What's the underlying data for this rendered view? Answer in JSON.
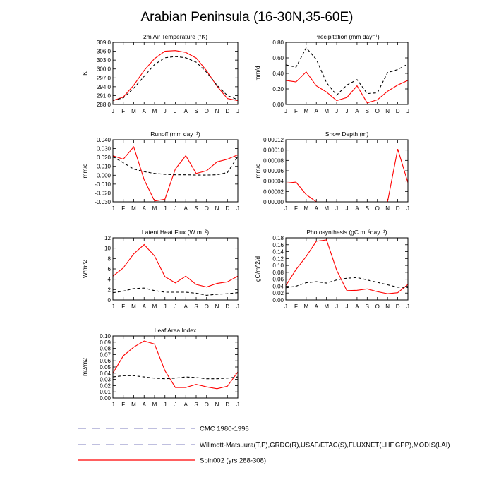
{
  "title": "Arabian Peninsula (16-30N,35-60E)",
  "months": [
    "J",
    "F",
    "M",
    "A",
    "M",
    "J",
    "J",
    "A",
    "S",
    "O",
    "N",
    "D",
    "J"
  ],
  "colors": {
    "model": "#ff0000",
    "obs": "#000000",
    "legend_dash": "#9999cc"
  },
  "legend": {
    "items": [
      {
        "label": "CMC 1980-1996",
        "style": "dashed"
      },
      {
        "label": "Willmott-Matsuura(T,P),GRDC(R),USAF/ETAC(S),FLUXNET(LHF,GPP),MODIS(LAI)",
        "style": "dashed"
      },
      {
        "label": "Spin002 (yrs 288-308)",
        "style": "solid"
      }
    ]
  },
  "chart_data": [
    {
      "type": "line",
      "title": "2m Air Temperature (°K)",
      "ylabel": "K",
      "ylim": [
        288.0,
        309.0
      ],
      "yticks": [
        288.0,
        291.0,
        294.0,
        297.0,
        300.0,
        303.0,
        306.0,
        309.0
      ],
      "ytick_labels": [
        "288.0",
        "291.0",
        "294.0",
        "297.0",
        "300.0",
        "303.0",
        "306.0",
        "309.0"
      ],
      "series": [
        {
          "role": "model",
          "values": [
            289.3,
            290.5,
            294.5,
            299.5,
            303.5,
            306.0,
            306.2,
            305.6,
            303.7,
            299.4,
            294.2,
            290.0,
            289.3
          ]
        },
        {
          "role": "obs",
          "values": [
            289.4,
            290.2,
            293.5,
            297.5,
            301.5,
            303.8,
            304.2,
            303.8,
            302.3,
            298.9,
            294.5,
            291.0,
            289.6
          ]
        }
      ]
    },
    {
      "type": "line",
      "title": "Precipitation (mm day⁻¹)",
      "ylabel": "mm/d",
      "ylim": [
        0.0,
        0.8
      ],
      "yticks": [
        0.0,
        0.2,
        0.4,
        0.6,
        0.8
      ],
      "ytick_labels": [
        "0.00",
        "0.20",
        "0.40",
        "0.60",
        "0.80"
      ],
      "series": [
        {
          "role": "model",
          "values": [
            0.31,
            0.29,
            0.42,
            0.24,
            0.16,
            0.05,
            0.09,
            0.24,
            0.02,
            0.06,
            0.17,
            0.25,
            0.31
          ]
        },
        {
          "role": "obs",
          "values": [
            0.51,
            0.48,
            0.73,
            0.58,
            0.28,
            0.12,
            0.25,
            0.32,
            0.14,
            0.15,
            0.41,
            0.45,
            0.52
          ]
        }
      ]
    },
    {
      "type": "line",
      "title": "Runoff (mm day⁻¹)",
      "ylabel": "mm/d",
      "ylim": [
        -0.03,
        0.04
      ],
      "yticks": [
        -0.03,
        -0.02,
        -0.01,
        0.0,
        0.01,
        0.02,
        0.03,
        0.04
      ],
      "ytick_labels": [
        "-0.030",
        "-0.020",
        "-0.010",
        "0.000",
        "0.010",
        "0.020",
        "0.030",
        "0.040"
      ],
      "series": [
        {
          "role": "model",
          "values": [
            0.022,
            0.018,
            0.032,
            -0.005,
            -0.029,
            -0.027,
            0.007,
            0.022,
            0.002,
            0.005,
            0.015,
            0.018,
            0.023
          ]
        },
        {
          "role": "obs",
          "values": [
            0.021,
            0.014,
            0.007,
            0.004,
            0.002,
            0.001,
            0.0005,
            0.0005,
            0.0002,
            0.0002,
            0.0005,
            0.003,
            0.021
          ]
        }
      ]
    },
    {
      "type": "line",
      "title": "Snow Depth (m)",
      "ylabel": "mm/d",
      "ylim": [
        0.0,
        0.00012
      ],
      "yticks": [
        0.0,
        2e-05,
        4e-05,
        6e-05,
        8e-05,
        0.0001,
        0.00012
      ],
      "ytick_labels": [
        "0.00000",
        "0.00002",
        "0.00004",
        "0.00006",
        "0.00008",
        "0.00010",
        "0.00012"
      ],
      "series": [
        {
          "role": "model",
          "values": [
            3.6e-05,
            3.8e-05,
            1.4e-05,
            0.0,
            0.0,
            0.0,
            0.0,
            0.0,
            0.0,
            0.0,
            0.0,
            0.000102,
            3.7e-05
          ]
        }
      ]
    },
    {
      "type": "line",
      "title": "Latent Heat Flux (W m⁻²)",
      "ylabel": "W/m^2",
      "ylim": [
        0,
        12
      ],
      "yticks": [
        0,
        2,
        4,
        6,
        8,
        10,
        12
      ],
      "ytick_labels": [
        "0",
        "2",
        "4",
        "6",
        "8",
        "10",
        "12"
      ],
      "series": [
        {
          "role": "model",
          "values": [
            4.6,
            6.2,
            8.9,
            10.7,
            8.5,
            4.5,
            3.3,
            4.6,
            3.0,
            2.5,
            3.2,
            3.5,
            4.6
          ]
        },
        {
          "role": "obs",
          "values": [
            1.4,
            1.7,
            2.2,
            2.3,
            1.8,
            1.5,
            1.5,
            1.5,
            1.3,
            0.9,
            1.1,
            1.2,
            1.4
          ]
        }
      ]
    },
    {
      "type": "line",
      "title": "Photosynthesis (gC m⁻²day⁻¹)",
      "ylabel": "gC/m^2/d",
      "ylim": [
        0.0,
        0.18
      ],
      "yticks": [
        0.0,
        0.02,
        0.04,
        0.06,
        0.08,
        0.1,
        0.12,
        0.14,
        0.16,
        0.18
      ],
      "ytick_labels": [
        "0.00",
        "0.02",
        "0.04",
        "0.06",
        "0.08",
        "0.10",
        "0.12",
        "0.14",
        "0.16",
        "0.18"
      ],
      "series": [
        {
          "role": "model",
          "values": [
            0.042,
            0.088,
            0.126,
            0.17,
            0.174,
            0.086,
            0.027,
            0.028,
            0.032,
            0.024,
            0.018,
            0.021,
            0.045
          ]
        },
        {
          "role": "obs",
          "values": [
            0.035,
            0.04,
            0.05,
            0.053,
            0.049,
            0.058,
            0.063,
            0.065,
            0.058,
            0.051,
            0.044,
            0.037,
            0.036
          ]
        }
      ]
    },
    {
      "type": "line",
      "title": "Leaf Area Index",
      "ylabel": "m2/m2",
      "ylim": [
        0.0,
        0.1
      ],
      "yticks": [
        0.0,
        0.01,
        0.02,
        0.03,
        0.04,
        0.05,
        0.06,
        0.07,
        0.08,
        0.09,
        0.1
      ],
      "ytick_labels": [
        "0.00",
        "0.01",
        "0.02",
        "0.03",
        "0.04",
        "0.05",
        "0.06",
        "0.07",
        "0.08",
        "0.09",
        "0.10"
      ],
      "series": [
        {
          "role": "model",
          "values": [
            0.04,
            0.068,
            0.082,
            0.092,
            0.087,
            0.044,
            0.017,
            0.017,
            0.022,
            0.018,
            0.015,
            0.019,
            0.042
          ]
        },
        {
          "role": "obs",
          "values": [
            0.034,
            0.036,
            0.036,
            0.034,
            0.032,
            0.031,
            0.032,
            0.034,
            0.033,
            0.031,
            0.031,
            0.032,
            0.034
          ]
        }
      ]
    }
  ]
}
